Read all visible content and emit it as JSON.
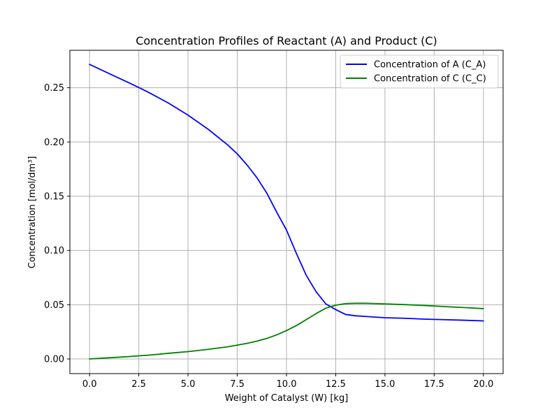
{
  "chart_data": {
    "type": "line",
    "title": "Concentration Profiles of Reactant (A) and Product (C)",
    "xlabel": "Weight of Catalyst (W) [kg]",
    "ylabel": "Concentration [mol/dm³]",
    "xlim": [
      -1,
      21
    ],
    "ylim": [
      -0.0135,
      0.2845
    ],
    "x_ticks": [
      0.0,
      2.5,
      5.0,
      7.5,
      10.0,
      12.5,
      15.0,
      17.5,
      20.0
    ],
    "x_tick_labels": [
      "0.0",
      "2.5",
      "5.0",
      "7.5",
      "10.0",
      "12.5",
      "15.0",
      "17.5",
      "20.0"
    ],
    "y_ticks": [
      0.0,
      0.05,
      0.1,
      0.15,
      0.2,
      0.25
    ],
    "y_tick_labels": [
      "0.00",
      "0.05",
      "0.10",
      "0.15",
      "0.20",
      "0.25"
    ],
    "grid": true,
    "legend_position": "top-right",
    "series": [
      {
        "name": "Concentration of A (C_A)",
        "color": "#0000ff",
        "x": [
          0,
          1,
          2,
          2.5,
          3,
          4,
          5,
          6,
          7,
          7.5,
          8,
          8.5,
          9,
          9.5,
          10,
          10.5,
          11,
          11.5,
          12,
          12.5,
          13,
          13.5,
          14,
          15,
          16,
          17,
          18,
          19,
          20
        ],
        "y": [
          0.2715,
          0.263,
          0.2545,
          0.2502,
          0.2457,
          0.2359,
          0.2247,
          0.212,
          0.1975,
          0.189,
          0.1787,
          0.167,
          0.1529,
          0.1354,
          0.1188,
          0.0974,
          0.0772,
          0.0621,
          0.0507,
          0.0455,
          0.041,
          0.0398,
          0.0392,
          0.038,
          0.0375,
          0.0367,
          0.0362,
          0.0357,
          0.0351
        ]
      },
      {
        "name": "Concentration of C (C_C)",
        "color": "#008000",
        "x": [
          0,
          1,
          2,
          2.5,
          3,
          4,
          5,
          6,
          7,
          7.5,
          8,
          8.5,
          9,
          9.5,
          10,
          10.5,
          11,
          11.5,
          12,
          12.5,
          13,
          13.5,
          14,
          15,
          16,
          17,
          18,
          19,
          20
        ],
        "y": [
          0.0,
          0.0011,
          0.0022,
          0.0029,
          0.0035,
          0.0052,
          0.0068,
          0.0088,
          0.0112,
          0.0127,
          0.0144,
          0.0164,
          0.0189,
          0.0222,
          0.0262,
          0.0307,
          0.0362,
          0.0418,
          0.0468,
          0.0496,
          0.051,
          0.0513,
          0.0513,
          0.0508,
          0.0501,
          0.0493,
          0.0483,
          0.0474,
          0.0464
        ]
      }
    ]
  }
}
